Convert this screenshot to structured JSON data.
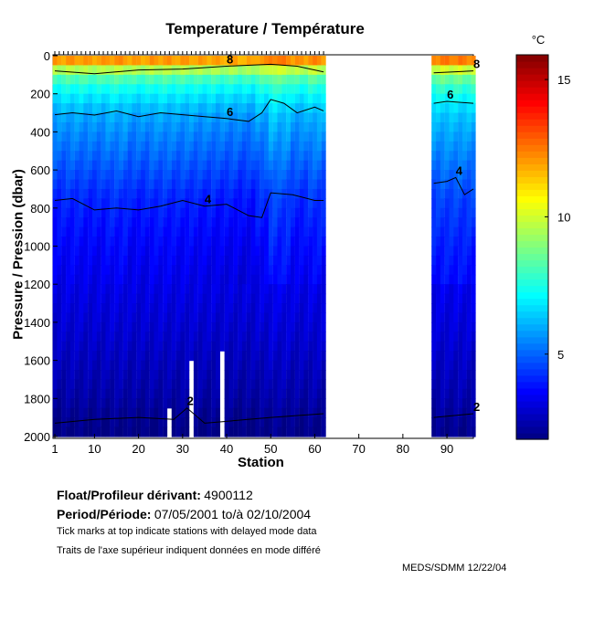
{
  "chart_data": {
    "type": "heatmap",
    "title": "Temperature / Température",
    "xlabel": "Station",
    "ylabel": "Pressure / Pression (dbar)",
    "xlim": [
      1,
      96
    ],
    "ylim": [
      2000,
      0
    ],
    "xticks": [
      1,
      10,
      20,
      30,
      40,
      50,
      60,
      70,
      80,
      90
    ],
    "yticks": [
      0,
      200,
      400,
      600,
      800,
      1000,
      1200,
      1400,
      1600,
      1800,
      2000
    ],
    "colorbar": {
      "label": "°C",
      "range": [
        1.9,
        15.9
      ],
      "ticks": [
        5,
        10,
        15
      ],
      "colormap": "jet"
    },
    "station_segments": [
      [
        1,
        62
      ],
      [
        87,
        96
      ]
    ],
    "delayed_mode_stations": [
      1,
      62
    ],
    "mean_profile": {
      "pressure": [
        0,
        50,
        100,
        150,
        200,
        300,
        400,
        500,
        600,
        750,
        1000,
        1200,
        1500,
        1800,
        1900,
        2000
      ],
      "temperature": [
        13.5,
        10.5,
        8.6,
        7.6,
        7.0,
        6.0,
        5.5,
        5.1,
        4.7,
        4.1,
        3.6,
        3.3,
        2.9,
        2.4,
        2.1,
        1.9
      ]
    },
    "missing": [
      {
        "station": 27,
        "from": 1850
      },
      {
        "station": 32,
        "from": 1590
      },
      {
        "station": 39,
        "from": 1530
      }
    ],
    "contours": [
      {
        "level": 8,
        "label": "8",
        "segments": [
          [
            [
              1,
              80
            ],
            [
              10,
              95
            ],
            [
              20,
              75
            ],
            [
              30,
              70
            ],
            [
              40,
              55
            ],
            [
              50,
              45
            ],
            [
              56,
              55
            ],
            [
              62,
              85
            ]
          ],
          [
            [
              87,
              90
            ],
            [
              96,
              80
            ]
          ]
        ]
      },
      {
        "level": 6,
        "label": "6",
        "segments": [
          [
            [
              1,
              310
            ],
            [
              5,
              300
            ],
            [
              10,
              312
            ],
            [
              15,
              290
            ],
            [
              20,
              320
            ],
            [
              25,
              300
            ],
            [
              30,
              310
            ],
            [
              35,
              320
            ],
            [
              40,
              330
            ],
            [
              45,
              345
            ],
            [
              48,
              300
            ],
            [
              50,
              230
            ],
            [
              53,
              250
            ],
            [
              56,
              300
            ],
            [
              60,
              270
            ],
            [
              62,
              290
            ]
          ],
          [
            [
              87,
              250
            ],
            [
              90,
              240
            ],
            [
              96,
              250
            ]
          ]
        ]
      },
      {
        "level": 4,
        "label": "4",
        "segments": [
          [
            [
              1,
              760
            ],
            [
              5,
              750
            ],
            [
              10,
              810
            ],
            [
              15,
              800
            ],
            [
              20,
              810
            ],
            [
              25,
              790
            ],
            [
              30,
              760
            ],
            [
              35,
              790
            ],
            [
              40,
              780
            ],
            [
              45,
              840
            ],
            [
              48,
              850
            ],
            [
              50,
              720
            ],
            [
              55,
              730
            ],
            [
              60,
              760
            ],
            [
              62,
              760
            ]
          ],
          [
            [
              87,
              670
            ],
            [
              90,
              660
            ],
            [
              92,
              640
            ],
            [
              94,
              730
            ],
            [
              96,
              700
            ]
          ]
        ]
      },
      {
        "level": 2,
        "label": "2",
        "segments": [
          [
            [
              1,
              1930
            ],
            [
              10,
              1910
            ],
            [
              20,
              1900
            ],
            [
              28,
              1910
            ],
            [
              31,
              1850
            ],
            [
              35,
              1930
            ],
            [
              40,
              1920
            ],
            [
              50,
              1900
            ],
            [
              62,
              1880
            ]
          ],
          [
            [
              87,
              1900
            ],
            [
              96,
              1880
            ]
          ]
        ]
      }
    ]
  },
  "info": {
    "float_label": "Float/Profileur dérivant:",
    "float_id": "4900112",
    "period_label": "Period/Période:",
    "period_value": "07/05/2001  to/à  02/10/2004",
    "note_en": "Tick marks at top indicate stations with delayed mode data",
    "note_fr": "Traits de l'axe supérieur indiquent données en mode différé",
    "credit": "MEDS/SDMM  12/22/04"
  }
}
